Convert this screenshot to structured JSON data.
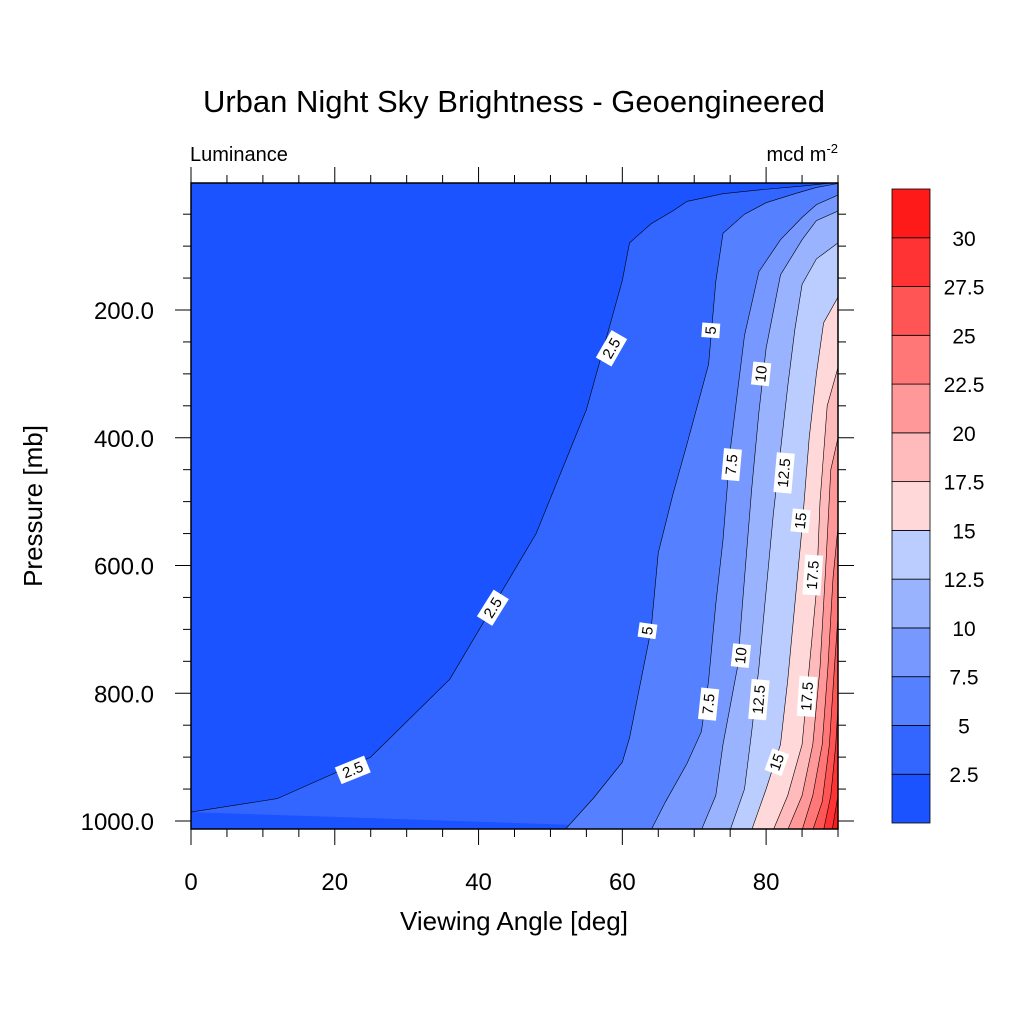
{
  "chart_data": {
    "type": "contour",
    "title": "Urban Night Sky Brightness - Geoengineered",
    "left_string": "Luminance",
    "right_string": {
      "base": "mcd m",
      "sup": "-2"
    },
    "xlabel": "Viewing Angle [deg]",
    "ylabel": "Pressure [mb]",
    "xlim": [
      0,
      90
    ],
    "ylim": [
      1000,
      0
    ],
    "x_ticks": [
      0,
      20,
      40,
      60,
      80
    ],
    "x_tick_labels": [
      "0",
      "20",
      "40",
      "60",
      "80"
    ],
    "y_ticks": [
      200,
      400,
      600,
      800,
      1000
    ],
    "y_tick_labels": [
      "200.0",
      "400.0",
      "600.0",
      "800.0",
      "1000.0"
    ],
    "levels": [
      2.5,
      5,
      7.5,
      10,
      12.5,
      15,
      17.5,
      20,
      22.5,
      25,
      27.5,
      30
    ],
    "level_labels": [
      "2.5",
      "5",
      "7.5",
      "10",
      "12.5",
      "15",
      "17.5",
      "20",
      "22.5",
      "25",
      "27.5",
      "30"
    ],
    "fill_colors": [
      "#1a53ff",
      "#3366ff",
      "#5580ff",
      "#7799ff",
      "#99b3ff",
      "#bbccff",
      "#ffd9d9",
      "#ffbbbb",
      "#ff9999",
      "#ff7777",
      "#ff5555",
      "#ff3333",
      "#ff1a1a"
    ],
    "contours": [
      {
        "level": 2.5,
        "points": [
          [
            0,
            986
          ],
          [
            12,
            965
          ],
          [
            25,
            900
          ],
          [
            36,
            778
          ],
          [
            48,
            550
          ],
          [
            55,
            356
          ],
          [
            60,
            154
          ],
          [
            61,
            95
          ],
          [
            64,
            65
          ],
          [
            67,
            45
          ],
          [
            69,
            30
          ],
          [
            74,
            18
          ],
          [
            79,
            12
          ],
          [
            85,
            6
          ],
          [
            90,
            0
          ]
        ]
      },
      {
        "level": 5,
        "points": [
          [
            52,
            1014
          ],
          [
            56,
            964
          ],
          [
            60,
            908
          ],
          [
            61,
            870
          ],
          [
            64,
            700
          ],
          [
            65,
            580
          ],
          [
            67,
            490
          ],
          [
            69,
            410
          ],
          [
            72,
            285
          ],
          [
            73,
            155
          ],
          [
            74,
            80
          ],
          [
            77,
            50
          ],
          [
            80,
            32
          ],
          [
            84,
            18
          ],
          [
            87,
            8
          ],
          [
            90,
            2
          ]
        ]
      },
      {
        "level": 7.5,
        "points": [
          [
            64,
            1014
          ],
          [
            66,
            970
          ],
          [
            69,
            910
          ],
          [
            71,
            860
          ],
          [
            72,
            780
          ],
          [
            73,
            660
          ],
          [
            74,
            560
          ],
          [
            75,
            420
          ],
          [
            77,
            240
          ],
          [
            79,
            140
          ],
          [
            82,
            90
          ],
          [
            85,
            55
          ],
          [
            87,
            35
          ],
          [
            90,
            20
          ]
        ]
      },
      {
        "level": 10,
        "points": [
          [
            71,
            1014
          ],
          [
            73,
            960
          ],
          [
            74,
            880
          ],
          [
            76,
            760
          ],
          [
            77,
            620
          ],
          [
            78,
            480
          ],
          [
            79,
            360
          ],
          [
            80,
            260
          ],
          [
            82,
            145
          ],
          [
            85,
            90
          ],
          [
            87,
            60
          ],
          [
            90,
            45
          ]
        ]
      },
      {
        "level": 12.5,
        "points": [
          [
            75,
            1014
          ],
          [
            77,
            950
          ],
          [
            78,
            860
          ],
          [
            79,
            760
          ],
          [
            80,
            640
          ],
          [
            81,
            520
          ],
          [
            82,
            420
          ],
          [
            83,
            320
          ],
          [
            84,
            230
          ],
          [
            85,
            160
          ],
          [
            87,
            120
          ],
          [
            90,
            95
          ]
        ]
      },
      {
        "level": 15,
        "points": [
          [
            78,
            1014
          ],
          [
            80,
            950
          ],
          [
            82,
            880
          ],
          [
            83,
            780
          ],
          [
            84,
            660
          ],
          [
            85,
            540
          ],
          [
            86,
            400
          ],
          [
            87,
            300
          ],
          [
            88,
            220
          ],
          [
            90,
            180
          ]
        ]
      },
      {
        "level": 17.5,
        "points": [
          [
            81,
            1014
          ],
          [
            83,
            960
          ],
          [
            85,
            880
          ],
          [
            86,
            760
          ],
          [
            87,
            640
          ],
          [
            87.5,
            500
          ],
          [
            88.5,
            350
          ],
          [
            90,
            290
          ]
        ]
      },
      {
        "level": 20,
        "points": [
          [
            83,
            1014
          ],
          [
            85,
            960
          ],
          [
            86.5,
            880
          ],
          [
            87.5,
            760
          ],
          [
            88.3,
            600
          ],
          [
            89,
            450
          ],
          [
            90,
            400
          ]
        ]
      },
      {
        "level": 22.5,
        "points": [
          [
            85,
            1014
          ],
          [
            86.5,
            960
          ],
          [
            87.8,
            880
          ],
          [
            88.6,
            760
          ],
          [
            89.3,
            620
          ],
          [
            90,
            540
          ]
        ]
      },
      {
        "level": 25,
        "points": [
          [
            86.5,
            1014
          ],
          [
            87.8,
            970
          ],
          [
            88.8,
            880
          ],
          [
            89.5,
            760
          ],
          [
            90,
            680
          ]
        ]
      },
      {
        "level": 27.5,
        "points": [
          [
            88,
            1014
          ],
          [
            89,
            960
          ],
          [
            89.7,
            880
          ],
          [
            90,
            820
          ]
        ]
      },
      {
        "level": 30,
        "points": [
          [
            89.2,
            1014
          ],
          [
            90,
            960
          ]
        ]
      }
    ],
    "contour_labels": [
      {
        "text": "2.5",
        "x": 58.5,
        "y": 260,
        "angle": -60
      },
      {
        "text": "2.5",
        "x": 42,
        "y": 666,
        "angle": -58
      },
      {
        "text": "2.5",
        "x": 22.5,
        "y": 920,
        "angle": -22
      },
      {
        "text": "5",
        "x": 72.3,
        "y": 232,
        "angle": -86
      },
      {
        "text": "5",
        "x": 63.5,
        "y": 702,
        "angle": -82
      },
      {
        "text": "7.5",
        "x": 75.2,
        "y": 442,
        "angle": -85
      },
      {
        "text": "7.5",
        "x": 72,
        "y": 817,
        "angle": -84
      },
      {
        "text": "10",
        "x": 79.3,
        "y": 300,
        "angle": -84
      },
      {
        "text": "10",
        "x": 76.5,
        "y": 741,
        "angle": -84
      },
      {
        "text": "12.5",
        "x": 82.5,
        "y": 455,
        "angle": -85
      },
      {
        "text": "12.5",
        "x": 79,
        "y": 810,
        "angle": -85
      },
      {
        "text": "15",
        "x": 84.8,
        "y": 530,
        "angle": -84
      },
      {
        "text": "15",
        "x": 81.5,
        "y": 908,
        "angle": -70
      },
      {
        "text": "17.5",
        "x": 86.5,
        "y": 615,
        "angle": -86
      },
      {
        "text": "17.5",
        "x": 85.7,
        "y": 805,
        "angle": -86
      }
    ]
  }
}
